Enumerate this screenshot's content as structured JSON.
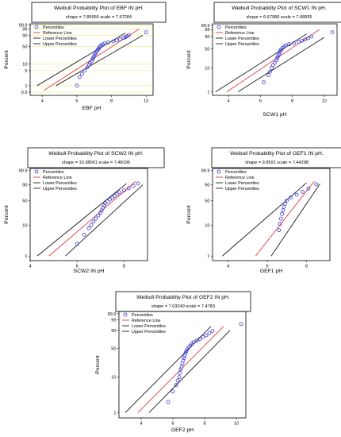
{
  "legend_labels": {
    "percentiles": "Percentiles",
    "reference": "Reference Line",
    "lower": "Lower Percentiles",
    "upper": "Upper Percentiles"
  },
  "colors": {
    "percentiles": "#3b3bd6",
    "reference": "#e03a3a",
    "bounds": "#1a1a1a",
    "grid": "#f2f2a0",
    "frame": "#000000"
  },
  "chart_data": [
    {
      "type": "scatter",
      "title": "Weibull Probability Plot of EBF IN pH.",
      "subtitle": "shape = 7.89956  scale = 7.67284",
      "xlabel": "EBF pH",
      "ylabel": "Percent",
      "x_ticks": [
        4,
        6,
        8,
        10
      ],
      "y_ticks": [
        "0.5",
        "1",
        "5",
        "10",
        "50",
        "90",
        "99",
        "99.9"
      ],
      "grid": true,
      "legend_position": "top-left",
      "points": [
        [
          6.0,
          1
        ],
        [
          6.15,
          2.5
        ],
        [
          6.3,
          3.5
        ],
        [
          6.45,
          5
        ],
        [
          6.6,
          7
        ],
        [
          6.7,
          9
        ],
        [
          6.75,
          11
        ],
        [
          6.85,
          13
        ],
        [
          6.9,
          16
        ],
        [
          6.95,
          19
        ],
        [
          7.0,
          22
        ],
        [
          7.05,
          26
        ],
        [
          7.1,
          30
        ],
        [
          7.15,
          34
        ],
        [
          7.2,
          38
        ],
        [
          7.25,
          42
        ],
        [
          7.3,
          46
        ],
        [
          7.35,
          50
        ],
        [
          7.4,
          54
        ],
        [
          7.5,
          58
        ],
        [
          7.6,
          62
        ],
        [
          7.8,
          66
        ],
        [
          8.1,
          70
        ],
        [
          8.3,
          74
        ],
        [
          8.5,
          78
        ],
        [
          8.7,
          82
        ],
        [
          8.8,
          85
        ],
        [
          8.9,
          88
        ],
        [
          9.0,
          91
        ],
        [
          10.0,
          96
        ]
      ],
      "reference_line": [
        [
          4.1,
          0.6
        ],
        [
          9.6,
          99
        ]
      ],
      "lower_line": [
        [
          3.7,
          1
        ],
        [
          8.8,
          95
        ]
      ],
      "upper_line": [
        [
          4.8,
          1
        ],
        [
          9.8,
          90
        ]
      ]
    },
    {
      "type": "scatter",
      "title": "Weibull Probability Plot of SCW1 IN pH.",
      "subtitle": "shape = 6.67989  scale = 7.68935",
      "xlabel": "SCW1 pH",
      "ylabel": "Percent",
      "x_ticks": [
        4,
        6,
        8,
        10
      ],
      "y_ticks": [
        "1",
        "10",
        "50",
        "90",
        "99",
        "99.9"
      ],
      "grid": false,
      "legend_position": "top-left",
      "points": [
        [
          6.2,
          2.5
        ],
        [
          6.5,
          5
        ],
        [
          6.6,
          7
        ],
        [
          6.7,
          10
        ],
        [
          6.8,
          13
        ],
        [
          6.9,
          16
        ],
        [
          7.0,
          20
        ],
        [
          7.05,
          24
        ],
        [
          7.1,
          28
        ],
        [
          7.15,
          33
        ],
        [
          7.2,
          38
        ],
        [
          7.25,
          43
        ],
        [
          7.3,
          48
        ],
        [
          7.4,
          53
        ],
        [
          7.5,
          58
        ],
        [
          7.6,
          62
        ],
        [
          7.8,
          66
        ],
        [
          8.1,
          70
        ],
        [
          8.4,
          74
        ],
        [
          8.6,
          78
        ],
        [
          8.8,
          82
        ],
        [
          9.0,
          86
        ],
        [
          9.2,
          90
        ],
        [
          10.5,
          97
        ]
      ],
      "reference_line": [
        [
          3.9,
          1
        ],
        [
          9.7,
          99
        ]
      ],
      "lower_line": [
        [
          3.2,
          1
        ],
        [
          8.9,
          95
        ]
      ],
      "upper_line": [
        [
          4.6,
          1
        ],
        [
          10.0,
          88
        ]
      ]
    },
    {
      "type": "scatter",
      "title": "Weibull Probability Plot of SCW2 IN pH.",
      "subtitle": "shape = 10.38061  scale = 7.48196",
      "xlabel": "SCW2 IN pH",
      "ylabel": "Percent",
      "x_ticks": [
        4,
        6,
        8
      ],
      "y_ticks": [
        "1",
        "10",
        "50",
        "90",
        "99.9"
      ],
      "grid": false,
      "legend_position": "top-left",
      "points": [
        [
          6.0,
          2.5
        ],
        [
          6.3,
          5
        ],
        [
          6.5,
          8
        ],
        [
          6.6,
          10
        ],
        [
          6.7,
          13
        ],
        [
          6.8,
          16
        ],
        [
          6.9,
          20
        ],
        [
          7.0,
          24
        ],
        [
          7.05,
          28
        ],
        [
          7.1,
          33
        ],
        [
          7.15,
          38
        ],
        [
          7.2,
          43
        ],
        [
          7.3,
          48
        ],
        [
          7.4,
          53
        ],
        [
          7.5,
          58
        ],
        [
          7.6,
          63
        ],
        [
          7.7,
          68
        ],
        [
          7.8,
          73
        ],
        [
          8.0,
          78
        ],
        [
          8.2,
          83
        ],
        [
          8.4,
          88
        ],
        [
          8.6,
          92
        ]
      ],
      "reference_line": [
        [
          4.8,
          1
        ],
        [
          8.5,
          95
        ]
      ],
      "lower_line": [
        [
          4.3,
          1
        ],
        [
          8.1,
          92
        ]
      ],
      "upper_line": [
        [
          5.5,
          1
        ],
        [
          8.8,
          90
        ]
      ]
    },
    {
      "type": "scatter",
      "title": "Weibull Probability Plot of GEF1 IN pH.",
      "subtitle": "shape = 9.9591  scale = 7.44298",
      "xlabel": "GEF1 pH",
      "ylabel": "Percent",
      "x_ticks": [
        4,
        6,
        8
      ],
      "y_ticks": [
        "1",
        "10",
        "50",
        "90",
        "99.9"
      ],
      "grid": false,
      "legend_position": "top-left",
      "points": [
        [
          6.6,
          7
        ],
        [
          6.65,
          11
        ],
        [
          6.7,
          16
        ],
        [
          6.75,
          22
        ],
        [
          6.8,
          28
        ],
        [
          6.85,
          35
        ],
        [
          6.9,
          42
        ],
        [
          7.0,
          50
        ],
        [
          7.2,
          58
        ],
        [
          7.5,
          66
        ],
        [
          7.8,
          74
        ],
        [
          8.1,
          82
        ],
        [
          8.5,
          91
        ]
      ],
      "reference_line": [
        [
          5.4,
          1
        ],
        [
          8.4,
          95
        ]
      ],
      "lower_line": [
        [
          3.7,
          1
        ],
        [
          8.0,
          93
        ]
      ],
      "upper_line": [
        [
          6.2,
          1
        ],
        [
          8.7,
          92
        ]
      ]
    },
    {
      "type": "scatter",
      "title": "Weibull Probability Plot of GEF2 IN pH.",
      "subtitle": "shape = 7.03249  scale = 7.4783",
      "xlabel": "GEF2 pH",
      "ylabel": "Percent",
      "x_ticks": [
        4,
        6,
        8,
        10
      ],
      "y_ticks": [
        "1",
        "10",
        "50",
        "90",
        "99",
        "99.9"
      ],
      "grid": false,
      "legend_position": "top-left",
      "points": [
        [
          5.7,
          2
        ],
        [
          6.0,
          4
        ],
        [
          6.2,
          6
        ],
        [
          6.3,
          8
        ],
        [
          6.4,
          10
        ],
        [
          6.45,
          13
        ],
        [
          6.5,
          16
        ],
        [
          6.55,
          19
        ],
        [
          6.6,
          23
        ],
        [
          6.65,
          27
        ],
        [
          6.7,
          31
        ],
        [
          6.75,
          35
        ],
        [
          6.8,
          40
        ],
        [
          6.85,
          44
        ],
        [
          6.9,
          48
        ],
        [
          7.0,
          53
        ],
        [
          7.1,
          57
        ],
        [
          7.2,
          61
        ],
        [
          7.3,
          65
        ],
        [
          7.5,
          69
        ],
        [
          7.7,
          73
        ],
        [
          7.9,
          77
        ],
        [
          8.1,
          81
        ],
        [
          8.3,
          85
        ],
        [
          8.5,
          89
        ],
        [
          10.3,
          97
        ]
      ],
      "reference_line": [
        [
          3.8,
          1
        ],
        [
          9.2,
          95
        ]
      ],
      "lower_line": [
        [
          3.0,
          1
        ],
        [
          8.4,
          95
        ]
      ],
      "upper_line": [
        [
          4.5,
          1
        ],
        [
          9.6,
          90
        ]
      ]
    }
  ]
}
